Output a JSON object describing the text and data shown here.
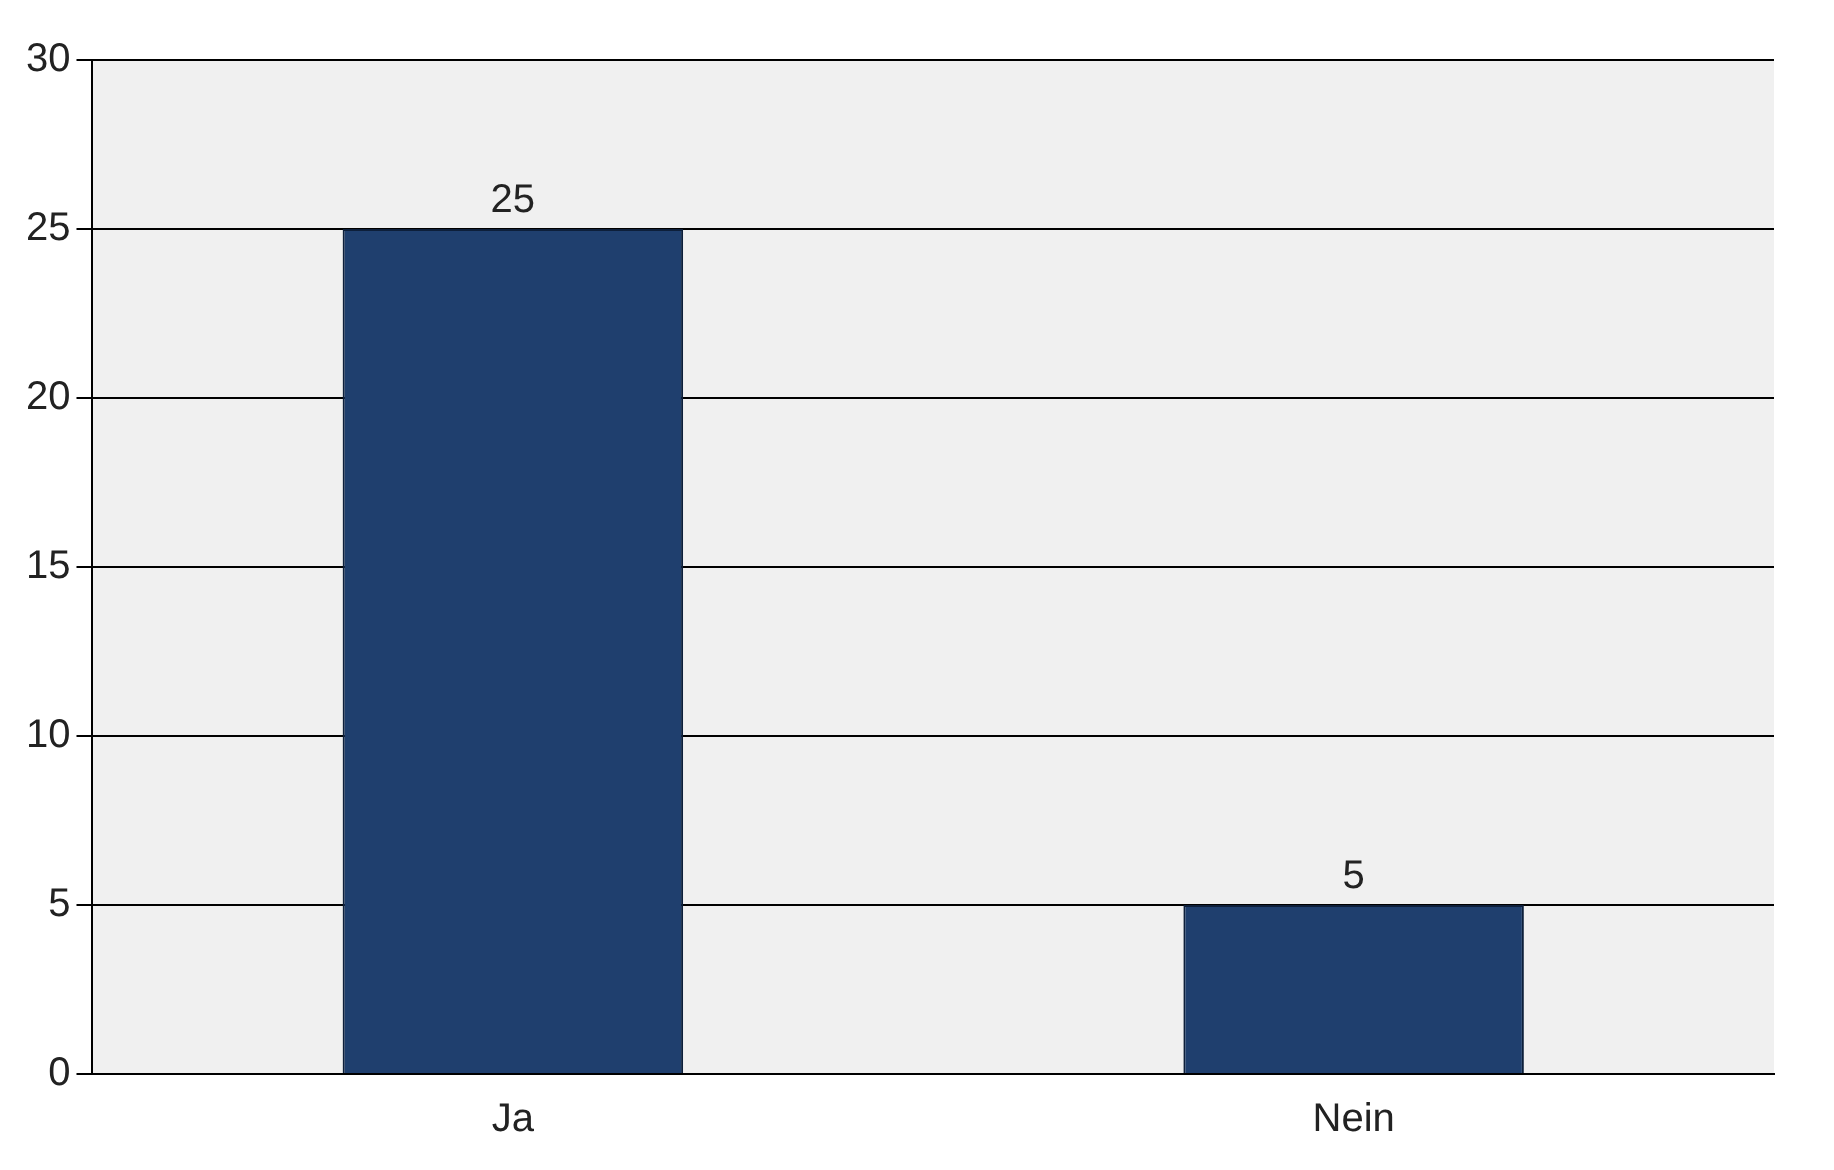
{
  "chart_data": {
    "type": "bar",
    "categories": [
      "Ja",
      "Nein"
    ],
    "values": [
      25,
      5
    ],
    "color": "#1f3f6e",
    "ylim": [
      0,
      30
    ],
    "yticks": [
      0,
      5,
      10,
      15,
      20,
      25,
      30
    ],
    "grid": "y",
    "data_labels": true,
    "legend": false
  }
}
